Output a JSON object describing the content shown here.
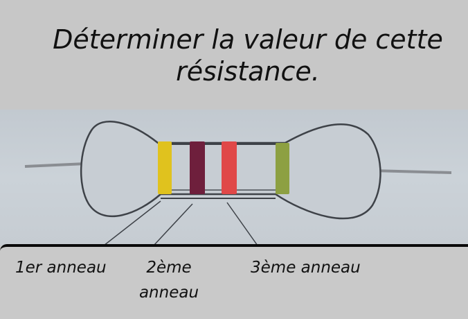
{
  "title": "Déterminer la valeur de cette résistance.",
  "labels": {
    "ring1": "1er anneau",
    "ring2": "2ème anneau",
    "ring3": "3ème anneau"
  },
  "bands": {
    "band1_color": "#e0c21e",
    "band2_color": "#6e1f3c",
    "band3_color": "#e04848",
    "band4_color": "#8da042"
  }
}
